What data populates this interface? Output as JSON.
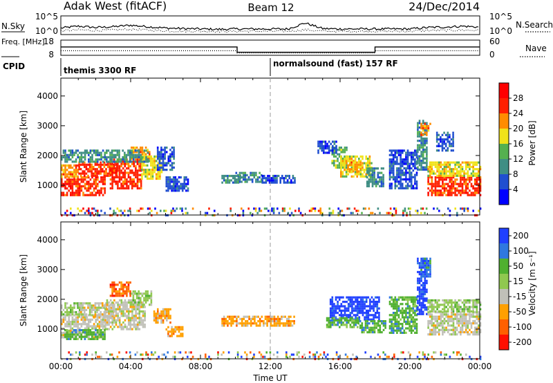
{
  "header": {
    "station": "Adak West (fitACF)",
    "beam": "Beam 12",
    "date": "24/Dec/2014"
  },
  "colors": {
    "power": [
      "#0000ff",
      "#204fd0",
      "#3f8e84",
      "#55b050",
      "#f0e21a",
      "#ff8c00",
      "#ff2000",
      "#ff0000"
    ],
    "velocity": [
      "#2040ff",
      "#2f78e0",
      "#50b030",
      "#90c850",
      "#c0c0b8",
      "#ffa000",
      "#ff6000",
      "#ff1000"
    ]
  },
  "chart_data": [
    {
      "type": "line",
      "name": "noise-panel",
      "ylabel_left": "N.Sky",
      "ylabel_right": "N.Search",
      "ytick_left": [
        "10^5",
        "10^0"
      ],
      "ytick_right": [
        "10^5",
        "10^0"
      ],
      "series": [
        {
          "style": "solid",
          "x": [
            0,
            1,
            2,
            3,
            4,
            5,
            6,
            7,
            8,
            9,
            10,
            11,
            12,
            13,
            14,
            15,
            16,
            17,
            18,
            19,
            20,
            21,
            22,
            23,
            24
          ],
          "y": [
            0.35,
            0.45,
            0.38,
            0.42,
            0.5,
            0.42,
            0.35,
            0.32,
            0.3,
            0.28,
            0.3,
            0.3,
            0.3,
            0.3,
            0.62,
            0.32,
            0.3,
            0.3,
            0.3,
            0.3,
            0.3,
            0.38,
            0.4,
            0.45,
            0.4
          ]
        },
        {
          "style": "dotted",
          "x": [
            0,
            1,
            2,
            3,
            4,
            5,
            6,
            7,
            8,
            9,
            10,
            11,
            12,
            13,
            14,
            15,
            16,
            17,
            18,
            19,
            20,
            21,
            22,
            23,
            24
          ],
          "y": [
            0.2,
            0.25,
            0.22,
            0.24,
            0.28,
            0.24,
            0.2,
            0.18,
            0.18,
            0.17,
            0.18,
            0.18,
            0.18,
            0.18,
            0.26,
            0.18,
            0.18,
            0.18,
            0.18,
            0.18,
            0.18,
            0.22,
            0.22,
            0.24,
            0.22
          ]
        }
      ]
    },
    {
      "type": "line",
      "name": "frequency-panel",
      "ylabel_left": "Freq. [MHz]",
      "ylabel_right": "Nave",
      "ytick_left": [
        "18",
        "8"
      ],
      "ytick_right": [
        "60",
        "0"
      ],
      "series": [
        {
          "style": "solid",
          "x": [
            0,
            10.1,
            10.1,
            18.0,
            18.0,
            24
          ],
          "y": [
            13.5,
            13.5,
            10.0,
            10.0,
            13.5,
            13.5
          ]
        },
        {
          "style": "dotted",
          "x": [
            0,
            10.1,
            10.1,
            18.0,
            18.0,
            24
          ],
          "y": [
            11.0,
            11.0,
            9.5,
            9.5,
            11.0,
            11.0
          ]
        }
      ]
    },
    {
      "type": "table",
      "name": "cpid-panel",
      "label": "CPID",
      "segments": [
        {
          "start": 0,
          "label": "themis 3300 RF"
        },
        {
          "start": 12,
          "label": "normalsound (fast) 157 RF"
        }
      ]
    },
    {
      "type": "heatmap",
      "name": "power-panel",
      "ylabel": "Slant Range [km]",
      "xlim": [
        0,
        24
      ],
      "ylim": [
        0,
        4600
      ],
      "yticks": [
        1000,
        2000,
        3000,
        4000
      ],
      "colorbar": {
        "label": "Power [dB]",
        "ticks": [
          4,
          8,
          12,
          16,
          20,
          24,
          28
        ],
        "range": [
          0,
          32
        ]
      },
      "regions": [
        {
          "t0": 0.0,
          "t1": 2.5,
          "r0": 700,
          "r1": 1300,
          "v": 27
        },
        {
          "t0": 0.0,
          "t1": 1.0,
          "r0": 1300,
          "r1": 1700,
          "v": 22
        },
        {
          "t0": 1.0,
          "t1": 3.2,
          "r0": 1300,
          "r1": 1800,
          "v": 26
        },
        {
          "t0": 2.8,
          "t1": 4.6,
          "r0": 900,
          "r1": 1900,
          "v": 26
        },
        {
          "t0": 4.0,
          "t1": 5.2,
          "r0": 1900,
          "r1": 2300,
          "v": 22
        },
        {
          "t0": 4.6,
          "t1": 5.8,
          "r0": 1200,
          "r1": 2000,
          "v": 17
        },
        {
          "t0": 0.0,
          "t1": 5.0,
          "r0": 1800,
          "r1": 2200,
          "v": 11
        },
        {
          "t0": 5.5,
          "t1": 6.5,
          "r0": 1500,
          "r1": 2300,
          "v": 7
        },
        {
          "t0": 6.0,
          "t1": 7.3,
          "r0": 800,
          "r1": 1300,
          "v": 6
        },
        {
          "t0": 9.2,
          "t1": 10.3,
          "r0": 1100,
          "r1": 1350,
          "v": 8
        },
        {
          "t0": 10.0,
          "t1": 11.5,
          "r0": 1100,
          "r1": 1450,
          "v": 9
        },
        {
          "t0": 11.5,
          "t1": 13.4,
          "r0": 1100,
          "r1": 1350,
          "v": 7
        },
        {
          "t0": 15.5,
          "t1": 16.4,
          "r0": 1600,
          "r1": 2300,
          "v": 12
        },
        {
          "t0": 16.0,
          "t1": 17.8,
          "r0": 1300,
          "r1": 2000,
          "v": 16
        },
        {
          "t0": 16.4,
          "t1": 17.2,
          "r0": 1500,
          "r1": 1800,
          "v": 20
        },
        {
          "t0": 17.5,
          "t1": 18.5,
          "r0": 1000,
          "r1": 1600,
          "v": 11
        },
        {
          "t0": 14.7,
          "t1": 15.8,
          "r0": 2100,
          "r1": 2500,
          "v": 6
        },
        {
          "t0": 18.8,
          "t1": 20.4,
          "r0": 900,
          "r1": 2200,
          "v": 6
        },
        {
          "t0": 20.4,
          "t1": 21.0,
          "r0": 1500,
          "r1": 3200,
          "v": 11
        },
        {
          "t0": 20.6,
          "t1": 21.2,
          "r0": 2700,
          "r1": 3100,
          "v": 22
        },
        {
          "t0": 21.0,
          "t1": 24.0,
          "r0": 700,
          "r1": 1300,
          "v": 27
        },
        {
          "t0": 21.0,
          "t1": 24.0,
          "r0": 1300,
          "r1": 1800,
          "v": 18
        },
        {
          "t0": 21.5,
          "t1": 22.5,
          "r0": 2200,
          "r1": 2800,
          "v": 7
        },
        {
          "t0": 0.0,
          "t1": 24.0,
          "r0": 0,
          "r1": 250,
          "v": 5
        }
      ]
    },
    {
      "type": "heatmap",
      "name": "velocity-panel",
      "ylabel": "Slant Range [km]",
      "xlabel": "Time UT",
      "xlim": [
        0,
        24
      ],
      "ylim": [
        0,
        4600
      ],
      "yticks": [
        1000,
        2000,
        3000,
        4000
      ],
      "xticks": [
        "00:00",
        "04:00",
        "08:00",
        "12:00",
        "16:00",
        "20:00",
        "00:00"
      ],
      "xtick_values": [
        0,
        4,
        8,
        12,
        16,
        20,
        24
      ],
      "colorbar": {
        "label": "Velocity [m s⁻¹]",
        "ticks": [
          "200",
          "100",
          "50",
          "15",
          "-15",
          "-50",
          "-100",
          "-200"
        ]
      },
      "regions": [
        {
          "t0": 0.0,
          "t1": 2.5,
          "r0": 700,
          "r1": 1500,
          "c": 4
        },
        {
          "t0": 0.0,
          "t1": 1.2,
          "r0": 1500,
          "r1": 1900,
          "c": 3
        },
        {
          "t0": 1.0,
          "t1": 3.0,
          "r0": 1400,
          "r1": 1900,
          "c": 4
        },
        {
          "t0": 2.5,
          "t1": 4.8,
          "r0": 1000,
          "r1": 2000,
          "c": 4
        },
        {
          "t0": 2.8,
          "t1": 4.0,
          "r0": 2100,
          "r1": 2600,
          "c": 6
        },
        {
          "t0": 4.0,
          "t1": 5.2,
          "r0": 1800,
          "r1": 2300,
          "c": 3
        },
        {
          "t0": 0.2,
          "t1": 2.5,
          "r0": 700,
          "r1": 1000,
          "c": 2
        },
        {
          "t0": 5.3,
          "t1": 6.3,
          "r0": 1200,
          "r1": 1700,
          "c": 5
        },
        {
          "t0": 6.0,
          "t1": 7.0,
          "r0": 800,
          "r1": 1100,
          "c": 5
        },
        {
          "t0": 9.2,
          "t1": 13.4,
          "r0": 1100,
          "r1": 1450,
          "c": 5
        },
        {
          "t0": 15.4,
          "t1": 18.2,
          "r0": 1300,
          "r1": 2100,
          "c": 0
        },
        {
          "t0": 15.2,
          "t1": 17.0,
          "r0": 1100,
          "r1": 1400,
          "c": 2
        },
        {
          "t0": 17.0,
          "t1": 18.6,
          "r0": 900,
          "r1": 1300,
          "c": 2
        },
        {
          "t0": 18.8,
          "t1": 20.4,
          "r0": 900,
          "r1": 2100,
          "c": 2
        },
        {
          "t0": 20.4,
          "t1": 21.0,
          "r0": 1500,
          "r1": 3400,
          "c": 0
        },
        {
          "t0": 20.6,
          "t1": 21.2,
          "r0": 2800,
          "r1": 3400,
          "c": 1
        },
        {
          "t0": 21.0,
          "t1": 24.0,
          "r0": 800,
          "r1": 1600,
          "c": 4
        },
        {
          "t0": 21.0,
          "t1": 24.0,
          "r0": 1600,
          "r1": 2000,
          "c": 3
        },
        {
          "t0": 0.0,
          "t1": 24.0,
          "r0": 0,
          "r1": 250,
          "c": 3
        }
      ]
    }
  ]
}
